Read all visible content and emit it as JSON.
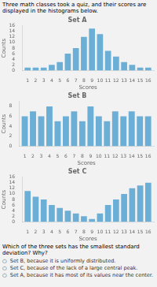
{
  "chart_data": [
    {
      "type": "bar",
      "title": "Set A",
      "xlabel": "Scores",
      "ylabel": "Counts",
      "annotations": [
        "Three math classes took a quiz, and their scores are displayed in the histograms below."
      ],
      "x": [
        1,
        2,
        3,
        4,
        5,
        6,
        7,
        8,
        9,
        10,
        11,
        12,
        13,
        14,
        15,
        16
      ],
      "values": [
        1,
        1,
        1,
        2,
        3,
        6,
        8,
        12,
        15,
        13,
        7,
        5,
        3,
        2,
        1,
        1
      ],
      "xlim": [
        0.3,
        16.7
      ],
      "xticks": [
        1,
        2,
        3,
        4,
        5,
        6,
        7,
        8,
        9,
        10,
        11,
        12,
        13,
        14,
        15,
        16
      ],
      "ylim": [
        0,
        16
      ],
      "yticks": [
        0,
        2,
        4,
        6,
        8,
        10,
        12,
        14,
        16
      ],
      "color": "#6baed6",
      "grid": false
    },
    {
      "type": "bar",
      "title": "Set B",
      "xlabel": "Scores",
      "ylabel": "Counts",
      "x": [
        1,
        2,
        3,
        4,
        5,
        6,
        7,
        8,
        9,
        10,
        11,
        12,
        13,
        14,
        15,
        16
      ],
      "values": [
        6,
        7,
        6,
        8,
        5,
        6,
        7,
        5,
        8,
        6,
        5,
        7,
        6,
        7,
        6,
        6
      ],
      "xlim": [
        0.3,
        16.7
      ],
      "xticks": [
        1,
        2,
        3,
        4,
        5,
        6,
        7,
        8,
        9,
        10,
        11,
        12,
        13,
        14,
        15,
        16
      ],
      "ylim": [
        0,
        9
      ],
      "yticks": [
        0,
        2,
        4,
        6,
        8
      ],
      "color": "#6baed6",
      "grid": false
    },
    {
      "type": "bar",
      "title": "Set C",
      "xlabel": "Scores",
      "ylabel": "Counts",
      "annotations": [
        "Which of the three sets has the smallest standard deviation? Why?",
        "○  Set B, because it is uniformly distributed.",
        "○  Set C, because of the lack of a large central peak.",
        "○  Set A, because it has most of its values near the center."
      ],
      "x": [
        1,
        2,
        3,
        4,
        5,
        6,
        7,
        8,
        9,
        10,
        11,
        12,
        13,
        14,
        15,
        16
      ],
      "values": [
        11,
        9,
        8,
        6,
        5,
        4,
        3,
        2,
        1,
        3,
        6,
        8,
        10,
        12,
        13,
        14
      ],
      "xlim": [
        0.3,
        16.7
      ],
      "xticks": [
        1,
        2,
        3,
        4,
        5,
        6,
        7,
        8,
        9,
        10,
        11,
        12,
        13,
        14,
        15,
        16
      ],
      "ylim": [
        0,
        16
      ],
      "yticks": [
        0,
        2,
        4,
        6,
        8,
        10,
        12,
        14,
        16
      ],
      "color": "#6baed6",
      "grid": false
    }
  ]
}
